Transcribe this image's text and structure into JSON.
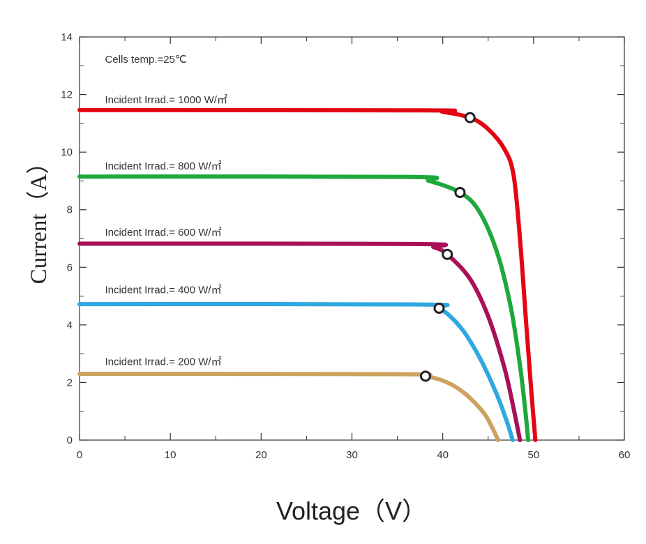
{
  "chart_data": {
    "type": "line",
    "xlabel": "Voltage（V）",
    "ylabel": "Current（A）",
    "xlim": [
      0,
      60
    ],
    "ylim": [
      0,
      14
    ],
    "xticks": [
      0,
      10,
      20,
      30,
      40,
      50,
      60
    ],
    "yticks": [
      0,
      2,
      4,
      6,
      8,
      10,
      12,
      14
    ],
    "grid": false,
    "annotations": [
      {
        "text": "Cells temp.=25℃",
        "x": 2.8,
        "y": 13.1
      }
    ],
    "series": [
      {
        "name": "Incident Irrad.= 1000 W/㎡",
        "label_at": [
          2.8,
          11.7
        ],
        "color": "#e30613",
        "isc": 11.46,
        "knee_v": 39,
        "voc": 50.2,
        "mpp": [
          43.0,
          11.2
        ],
        "points": [
          [
            0,
            11.46
          ],
          [
            38,
            11.45
          ],
          [
            40,
            11.4
          ],
          [
            43.0,
            11.2
          ],
          [
            45,
            10.8
          ],
          [
            46.8,
            10.1
          ],
          [
            47.8,
            9.2
          ],
          [
            48.5,
            7.0
          ],
          [
            49.2,
            4.0
          ],
          [
            49.8,
            1.5
          ],
          [
            50.2,
            0
          ]
        ]
      },
      {
        "name": "Incident Irrad.= 800 W/㎡",
        "label_at": [
          2.8,
          9.4
        ],
        "color": "#1ea83c",
        "isc": 9.15,
        "knee_v": 36,
        "voc": 49.4,
        "mpp": [
          41.9,
          8.6
        ],
        "points": [
          [
            0,
            9.15
          ],
          [
            36,
            9.14
          ],
          [
            38.5,
            9.0
          ],
          [
            41.9,
            8.6
          ],
          [
            44,
            7.95
          ],
          [
            46,
            6.5
          ],
          [
            47.5,
            4.6
          ],
          [
            48.5,
            2.6
          ],
          [
            49.1,
            1.0
          ],
          [
            49.4,
            0
          ]
        ]
      },
      {
        "name": "Incident Irrad.= 600 W/㎡",
        "label_at": [
          2.8,
          7.1
        ],
        "color": "#a8105a",
        "isc": 6.82,
        "knee_v": 37,
        "voc": 48.5,
        "mpp": [
          40.5,
          6.45
        ],
        "points": [
          [
            0,
            6.82
          ],
          [
            37,
            6.81
          ],
          [
            39,
            6.7
          ],
          [
            40.5,
            6.45
          ],
          [
            43,
            5.6
          ],
          [
            45,
            4.3
          ],
          [
            46.8,
            2.5
          ],
          [
            47.8,
            1.1
          ],
          [
            48.5,
            0
          ]
        ]
      },
      {
        "name": "Incident Irrad.= 400 W/㎡",
        "label_at": [
          2.8,
          5.1
        ],
        "color": "#2fa8e0",
        "isc": 4.72,
        "knee_v": 37,
        "voc": 47.7,
        "mpp": [
          39.6,
          4.58
        ],
        "points": [
          [
            0,
            4.72
          ],
          [
            37,
            4.71
          ],
          [
            39.6,
            4.58
          ],
          [
            42,
            3.9
          ],
          [
            44,
            2.9
          ],
          [
            45.8,
            1.7
          ],
          [
            47,
            0.7
          ],
          [
            47.7,
            0
          ]
        ]
      },
      {
        "name": "Incident Irrad.= 200 W/㎡",
        "label_at": [
          2.8,
          2.6
        ],
        "color": "#cda260",
        "isc": 2.3,
        "knee_v": 35,
        "voc": 46.1,
        "mpp": [
          38.1,
          2.22
        ],
        "points": [
          [
            0,
            2.3
          ],
          [
            35,
            2.29
          ],
          [
            38.1,
            2.22
          ],
          [
            40.5,
            2.0
          ],
          [
            42.5,
            1.6
          ],
          [
            44.5,
            0.95
          ],
          [
            45.5,
            0.4
          ],
          [
            46.1,
            0
          ]
        ]
      }
    ]
  }
}
